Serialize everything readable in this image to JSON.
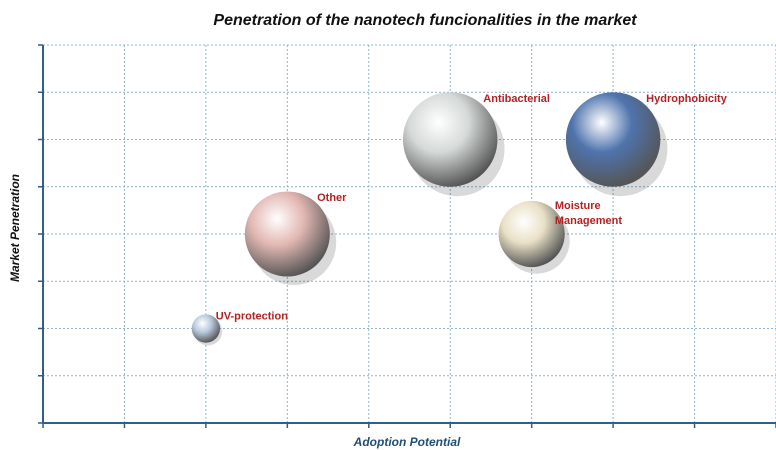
{
  "chart_data": {
    "type": "bubble",
    "title": "Penetration of the nanotech funcionalities in the market",
    "x_label": "Adoption Potential",
    "y_label": "Market Penetration",
    "series": [
      {
        "name": "UV-protection",
        "color": "#b9c9dd",
        "x": 2,
        "y": 2,
        "size": 1.5
      },
      {
        "name": "Other",
        "color": "#e2b7b2",
        "x": 3,
        "y": 4,
        "size": 4.5
      },
      {
        "name": "Antibacterial",
        "color": "#d5d9d8",
        "x": 5,
        "y": 6,
        "size": 5
      },
      {
        "name": "Moisture Management",
        "color": "#e9e0c6",
        "x": 6,
        "y": 4,
        "size": 3.5
      },
      {
        "name": "Hydrophobicity",
        "color": "#4f74ad",
        "x": 7,
        "y": 6,
        "size": 5
      }
    ],
    "xlim": [
      0,
      9
    ],
    "ylim": [
      0,
      8
    ],
    "xticks": [
      0,
      1,
      2,
      3,
      4,
      5,
      6,
      7,
      8,
      9
    ],
    "yticks": [
      0,
      1,
      2,
      3,
      4,
      5,
      6,
      7,
      8
    ],
    "grid": true,
    "label_color": "#b22222"
  }
}
